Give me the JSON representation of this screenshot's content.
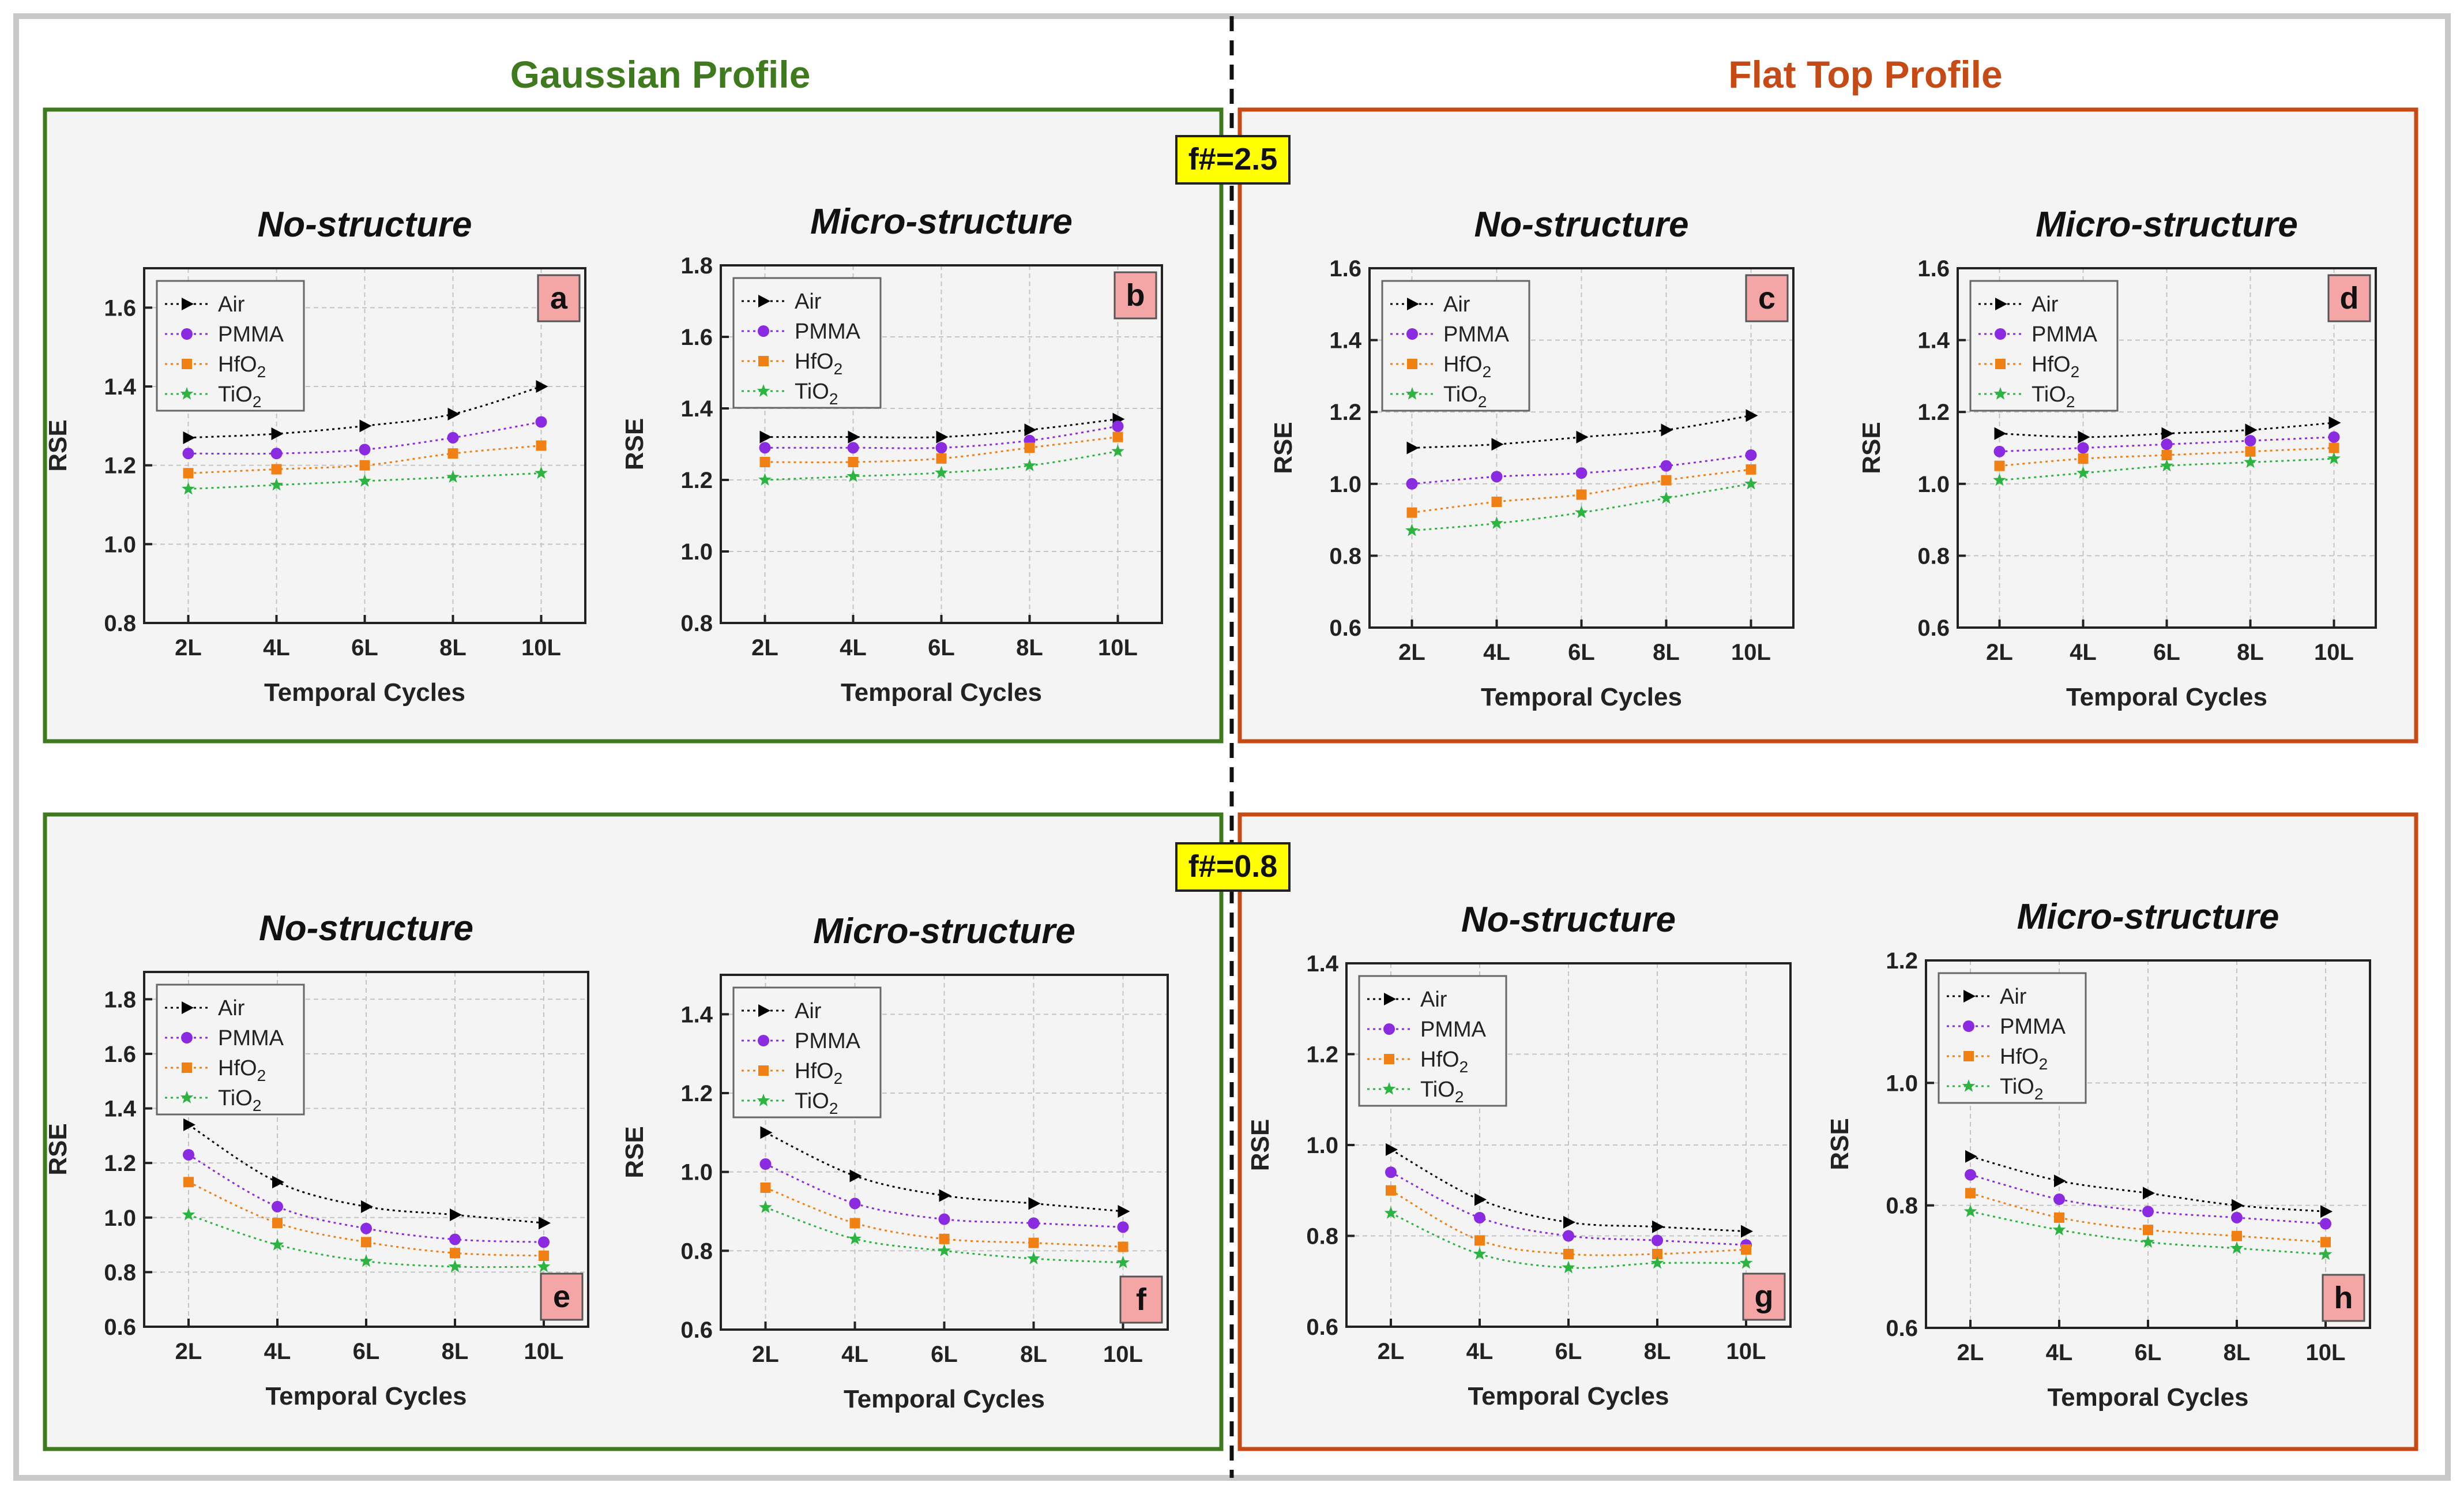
{
  "headers": {
    "gaussian": "Gaussian Profile",
    "flat_top": "Flat Top Profile"
  },
  "fnumbers": [
    "f#=2.5",
    "f#=0.8"
  ],
  "colors": {
    "gaussian": "#3f7b1e",
    "flat_top": "#c54a16",
    "badge_bg": "#ffff00",
    "letter_bg": "#f4a6a6",
    "panel_bg": "#f4f4f4",
    "Air": "#000000",
    "PMMA": "#8a2be2",
    "HfO2": "#f07f14",
    "TiO2": "#2cb342"
  },
  "chart_data": [
    {
      "id": "a",
      "type": "line",
      "title": "No-structure",
      "letter": "a",
      "xlabel": "Temporal Cycles",
      "ylabel": "RSE",
      "categories": [
        "2L",
        "4L",
        "6L",
        "8L",
        "10L"
      ],
      "ylim": [
        0.8,
        1.7
      ],
      "yticks": [
        0.8,
        1.0,
        1.2,
        1.4,
        1.6
      ],
      "legend": "top-left",
      "letter_pos": "top-right",
      "series": [
        {
          "name": "Air",
          "label": "Air",
          "values": [
            1.27,
            1.28,
            1.3,
            1.33,
            1.4
          ]
        },
        {
          "name": "PMMA",
          "label": "PMMA",
          "values": [
            1.23,
            1.23,
            1.24,
            1.27,
            1.31
          ]
        },
        {
          "name": "HfO2",
          "label": "HfO",
          "values": [
            1.18,
            1.19,
            1.2,
            1.23,
            1.25
          ]
        },
        {
          "name": "TiO2",
          "label": "TiO",
          "values": [
            1.14,
            1.15,
            1.16,
            1.17,
            1.18
          ]
        }
      ]
    },
    {
      "id": "b",
      "type": "line",
      "title": "Micro-structure",
      "letter": "b",
      "xlabel": "Temporal Cycles",
      "ylabel": "RSE",
      "categories": [
        "2L",
        "4L",
        "6L",
        "8L",
        "10L"
      ],
      "ylim": [
        0.8,
        1.8
      ],
      "yticks": [
        0.8,
        1.0,
        1.2,
        1.4,
        1.6,
        1.8
      ],
      "legend": "top-left",
      "letter_pos": "top-right",
      "series": [
        {
          "name": "Air",
          "label": "Air",
          "values": [
            1.32,
            1.32,
            1.32,
            1.34,
            1.37
          ]
        },
        {
          "name": "PMMA",
          "label": "PMMA",
          "values": [
            1.29,
            1.29,
            1.29,
            1.31,
            1.35
          ]
        },
        {
          "name": "HfO2",
          "label": "HfO",
          "values": [
            1.25,
            1.25,
            1.26,
            1.29,
            1.32
          ]
        },
        {
          "name": "TiO2",
          "label": "TiO",
          "values": [
            1.2,
            1.21,
            1.22,
            1.24,
            1.28
          ]
        }
      ]
    },
    {
      "id": "c",
      "type": "line",
      "title": "No-structure",
      "letter": "c",
      "xlabel": "Temporal Cycles",
      "ylabel": "RSE",
      "categories": [
        "2L",
        "4L",
        "6L",
        "8L",
        "10L"
      ],
      "ylim": [
        0.6,
        1.6
      ],
      "yticks": [
        0.6,
        0.8,
        1.0,
        1.2,
        1.4,
        1.6
      ],
      "legend": "top-left",
      "letter_pos": "top-right",
      "series": [
        {
          "name": "Air",
          "label": "Air",
          "values": [
            1.1,
            1.11,
            1.13,
            1.15,
            1.19
          ]
        },
        {
          "name": "PMMA",
          "label": "PMMA",
          "values": [
            1.0,
            1.02,
            1.03,
            1.05,
            1.08
          ]
        },
        {
          "name": "HfO2",
          "label": "HfO",
          "values": [
            0.92,
            0.95,
            0.97,
            1.01,
            1.04
          ]
        },
        {
          "name": "TiO2",
          "label": "TiO",
          "values": [
            0.87,
            0.89,
            0.92,
            0.96,
            1.0
          ]
        }
      ]
    },
    {
      "id": "d",
      "type": "line",
      "title": "Micro-structure",
      "letter": "d",
      "xlabel": "Temporal Cycles",
      "ylabel": "RSE",
      "categories": [
        "2L",
        "4L",
        "6L",
        "8L",
        "10L"
      ],
      "ylim": [
        0.6,
        1.6
      ],
      "yticks": [
        0.6,
        0.8,
        1.0,
        1.2,
        1.4,
        1.6
      ],
      "legend": "top-left",
      "letter_pos": "top-right",
      "series": [
        {
          "name": "Air",
          "label": "Air",
          "values": [
            1.14,
            1.13,
            1.14,
            1.15,
            1.17
          ]
        },
        {
          "name": "PMMA",
          "label": "PMMA",
          "values": [
            1.09,
            1.1,
            1.11,
            1.12,
            1.13
          ]
        },
        {
          "name": "HfO2",
          "label": "HfO",
          "values": [
            1.05,
            1.07,
            1.08,
            1.09,
            1.1
          ]
        },
        {
          "name": "TiO2",
          "label": "TiO",
          "values": [
            1.01,
            1.03,
            1.05,
            1.06,
            1.07
          ]
        }
      ]
    },
    {
      "id": "e",
      "type": "line",
      "title": "No-structure",
      "letter": "e",
      "xlabel": "Temporal Cycles",
      "ylabel": "RSE",
      "categories": [
        "2L",
        "4L",
        "6L",
        "8L",
        "10L"
      ],
      "ylim": [
        0.6,
        1.9
      ],
      "yticks": [
        0.6,
        0.8,
        1.0,
        1.2,
        1.4,
        1.6,
        1.8
      ],
      "legend": "top-left",
      "letter_pos": "bottom-right",
      "series": [
        {
          "name": "Air",
          "label": "Air",
          "values": [
            1.34,
            1.13,
            1.04,
            1.01,
            0.98
          ]
        },
        {
          "name": "PMMA",
          "label": "PMMA",
          "values": [
            1.23,
            1.04,
            0.96,
            0.92,
            0.91
          ]
        },
        {
          "name": "HfO2",
          "label": "HfO",
          "values": [
            1.13,
            0.98,
            0.91,
            0.87,
            0.86
          ]
        },
        {
          "name": "TiO2",
          "label": "TiO",
          "values": [
            1.01,
            0.9,
            0.84,
            0.82,
            0.82
          ]
        }
      ]
    },
    {
      "id": "f",
      "type": "line",
      "title": "Micro-structure",
      "letter": "f",
      "xlabel": "Temporal Cycles",
      "ylabel": "RSE",
      "categories": [
        "2L",
        "4L",
        "6L",
        "8L",
        "10L"
      ],
      "ylim": [
        0.6,
        1.5
      ],
      "yticks": [
        0.6,
        0.8,
        1.0,
        1.2,
        1.4
      ],
      "legend": "top-left",
      "letter_pos": "bottom-right",
      "series": [
        {
          "name": "Air",
          "label": "Air",
          "values": [
            1.1,
            0.99,
            0.94,
            0.92,
            0.9
          ]
        },
        {
          "name": "PMMA",
          "label": "PMMA",
          "values": [
            1.02,
            0.92,
            0.88,
            0.87,
            0.86
          ]
        },
        {
          "name": "HfO2",
          "label": "HfO",
          "values": [
            0.96,
            0.87,
            0.83,
            0.82,
            0.81
          ]
        },
        {
          "name": "TiO2",
          "label": "TiO",
          "values": [
            0.91,
            0.83,
            0.8,
            0.78,
            0.77
          ]
        }
      ]
    },
    {
      "id": "g",
      "type": "line",
      "title": "No-structure",
      "letter": "g",
      "xlabel": "Temporal Cycles",
      "ylabel": "RSE",
      "categories": [
        "2L",
        "4L",
        "6L",
        "8L",
        "10L"
      ],
      "ylim": [
        0.6,
        1.4
      ],
      "yticks": [
        0.6,
        0.8,
        1.0,
        1.2,
        1.4
      ],
      "legend": "top-left",
      "letter_pos": "bottom-right",
      "series": [
        {
          "name": "Air",
          "label": "Air",
          "values": [
            0.99,
            0.88,
            0.83,
            0.82,
            0.81
          ]
        },
        {
          "name": "PMMA",
          "label": "PMMA",
          "values": [
            0.94,
            0.84,
            0.8,
            0.79,
            0.78
          ]
        },
        {
          "name": "HfO2",
          "label": "HfO",
          "values": [
            0.9,
            0.79,
            0.76,
            0.76,
            0.77
          ]
        },
        {
          "name": "TiO2",
          "label": "TiO",
          "values": [
            0.85,
            0.76,
            0.73,
            0.74,
            0.74
          ]
        }
      ]
    },
    {
      "id": "h",
      "type": "line",
      "title": "Micro-structure",
      "letter": "h",
      "xlabel": "Temporal Cycles",
      "ylabel": "RSE",
      "categories": [
        "2L",
        "4L",
        "6L",
        "8L",
        "10L"
      ],
      "ylim": [
        0.6,
        1.2
      ],
      "yticks": [
        0.6,
        0.8,
        1.0,
        1.2
      ],
      "legend": "top-left",
      "letter_pos": "bottom-right",
      "series": [
        {
          "name": "Air",
          "label": "Air",
          "values": [
            0.88,
            0.84,
            0.82,
            0.8,
            0.79
          ]
        },
        {
          "name": "PMMA",
          "label": "PMMA",
          "values": [
            0.85,
            0.81,
            0.79,
            0.78,
            0.77
          ]
        },
        {
          "name": "HfO2",
          "label": "HfO",
          "values": [
            0.82,
            0.78,
            0.76,
            0.75,
            0.74
          ]
        },
        {
          "name": "TiO2",
          "label": "TiO",
          "values": [
            0.79,
            0.76,
            0.74,
            0.73,
            0.72
          ]
        }
      ]
    }
  ]
}
